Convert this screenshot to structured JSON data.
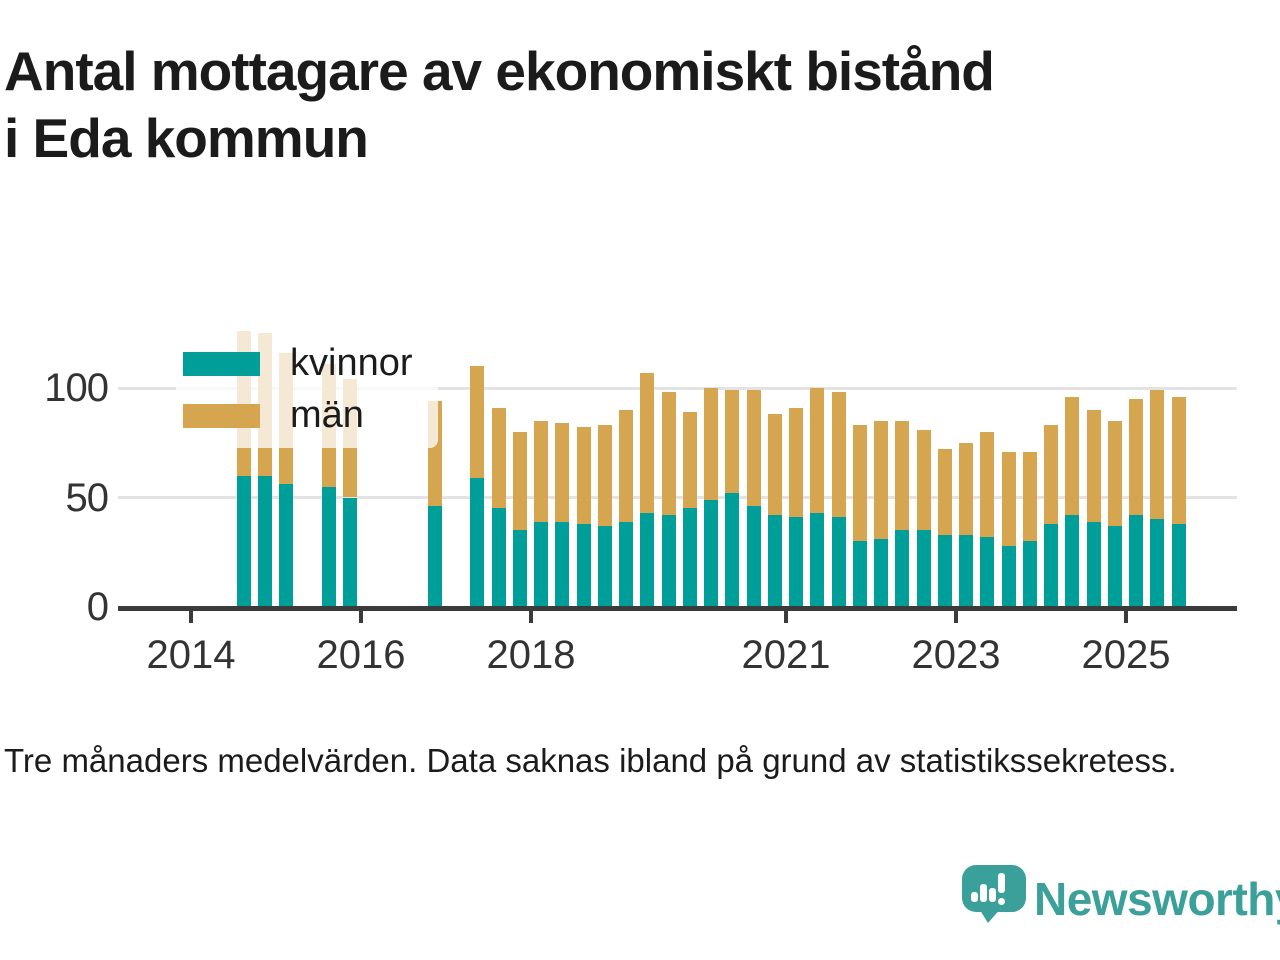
{
  "header": {
    "title": "Antal mottagare av ekonomiskt bistånd i Eda kommun",
    "title_lines": [
      "Antal mottagare av ekonomiskt bistånd",
      "i Eda kommun"
    ]
  },
  "legend": {
    "items": [
      {
        "label": "kvinnor",
        "color": "#009E99"
      },
      {
        "label": "män",
        "color": "#D5A54F"
      }
    ]
  },
  "footer": {
    "note": "Tre månaders medelvärden. Data saknas ibland på grund av statistikssekretess."
  },
  "branding": {
    "name": "Newsworthy",
    "color": "#3BA099",
    "logo_icon": "speech-bubble-bar-chart-exclamation"
  },
  "colors": {
    "kvinnor": "#009E99",
    "man": "#D5A54F",
    "grid": "#E3E3E3",
    "axis": "#3B3B3B",
    "tick_label": "#333333",
    "text": "#1B1B1B",
    "legend_bg": "rgba(255,255,255,0.76)"
  },
  "chart_data": {
    "type": "bar",
    "stacked": true,
    "title": "Antal mottagare av ekonomiskt bistånd i Eda kommun",
    "grid": "horizontal",
    "legend_position": "top-left",
    "ylim": [
      0,
      130
    ],
    "yticks": [
      0,
      50,
      100
    ],
    "xtick_labels": [
      "2014",
      "2016",
      "2018",
      "2021",
      "2023",
      "2025"
    ],
    "categories": [
      "2014 Q3",
      "2014 Q4",
      "2015 Q1",
      "2015 Q2",
      "2015 Q3",
      "2015 Q4",
      "2016 Q1",
      "2016 Q2",
      "2016 Q3",
      "2016 Q4",
      "2017 Q1",
      "2017 Q2",
      "2017 Q3",
      "2017 Q4",
      "2018 Q1",
      "2018 Q2",
      "2018 Q3",
      "2018 Q4",
      "2019 Q1",
      "2019 Q2",
      "2019 Q3",
      "2019 Q4",
      "2020 Q1",
      "2020 Q2",
      "2020 Q3",
      "2020 Q4",
      "2021 Q1",
      "2021 Q2",
      "2021 Q3",
      "2021 Q4",
      "2022 Q1",
      "2022 Q2",
      "2022 Q3",
      "2022 Q4",
      "2023 Q1",
      "2023 Q2",
      "2023 Q3",
      "2023 Q4",
      "2024 Q1",
      "2024 Q2",
      "2024 Q3",
      "2024 Q4",
      "2025 Q1",
      "2025 Q2",
      "2025 Q3"
    ],
    "series": [
      {
        "name": "kvinnor",
        "color": "#009E99",
        "values": [
          60,
          60,
          56,
          null,
          55,
          50,
          null,
          null,
          null,
          46,
          null,
          59,
          45,
          35,
          39,
          39,
          38,
          37,
          39,
          43,
          42,
          45,
          49,
          52,
          46,
          42,
          41,
          43,
          41,
          30,
          31,
          35,
          35,
          33,
          33,
          32,
          28,
          30,
          38,
          42,
          39,
          37,
          42,
          40,
          38
        ]
      },
      {
        "name": "män",
        "color": "#D5A54F",
        "values": [
          66,
          65,
          60,
          null,
          56,
          54,
          null,
          null,
          null,
          48,
          null,
          51,
          46,
          45,
          46,
          45,
          44,
          46,
          51,
          64,
          56,
          44,
          51,
          47,
          53,
          46,
          50,
          57,
          57,
          53,
          54,
          50,
          46,
          39,
          42,
          48,
          43,
          41,
          45,
          54,
          51,
          48,
          53,
          59,
          58
        ]
      }
    ],
    "missing_data_periods": [
      "2015 Q2",
      "2016 Q1",
      "2016 Q2",
      "2016 Q3",
      "2017 Q1"
    ]
  }
}
